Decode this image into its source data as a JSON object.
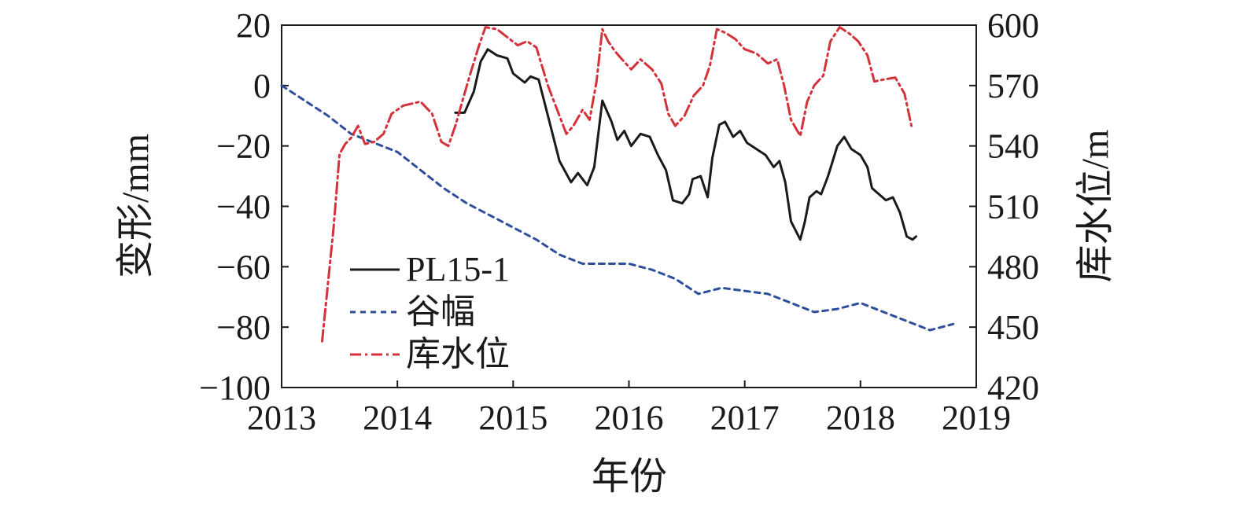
{
  "chart_data": {
    "type": "line",
    "xlabel": "年份",
    "ylabel_left": "变形/mm",
    "ylabel_right": "库水位/m",
    "xlim": [
      2013,
      2019
    ],
    "ylim_left": [
      -100,
      20
    ],
    "ylim_right": [
      420,
      600
    ],
    "x_ticks": [
      {
        "value": 2013,
        "label": "2013"
      },
      {
        "value": 2014,
        "label": "2014"
      },
      {
        "value": 2015,
        "label": "2015"
      },
      {
        "value": 2016,
        "label": "2016"
      },
      {
        "value": 2017,
        "label": "2017"
      },
      {
        "value": 2018,
        "label": "2018"
      },
      {
        "value": 2019,
        "label": "2019"
      }
    ],
    "y_ticks_left": [
      {
        "value": 20,
        "label": "20"
      },
      {
        "value": 0,
        "label": "0"
      },
      {
        "value": -20,
        "label": "−20"
      },
      {
        "value": -40,
        "label": "−40"
      },
      {
        "value": -60,
        "label": "−60"
      },
      {
        "value": -80,
        "label": "−80"
      },
      {
        "value": -100,
        "label": "−100"
      }
    ],
    "y_ticks_right": [
      {
        "value": 600,
        "label": "600"
      },
      {
        "value": 570,
        "label": "570"
      },
      {
        "value": 540,
        "label": "540"
      },
      {
        "value": 510,
        "label": "510"
      },
      {
        "value": 480,
        "label": "480"
      },
      {
        "value": 450,
        "label": "450"
      },
      {
        "value": 420,
        "label": "420"
      }
    ],
    "grid": false,
    "legend": {
      "placement": "lower-left"
    },
    "series": [
      {
        "name": "PL15-1",
        "axis": "left",
        "color": "#1a1a1a",
        "style": "solid",
        "points": [
          [
            2014.5,
            -9
          ],
          [
            2014.58,
            -9
          ],
          [
            2014.66,
            -2
          ],
          [
            2014.72,
            8
          ],
          [
            2014.78,
            12
          ],
          [
            2014.86,
            10
          ],
          [
            2014.95,
            9
          ],
          [
            2015.0,
            4
          ],
          [
            2015.1,
            1
          ],
          [
            2015.15,
            3
          ],
          [
            2015.22,
            2
          ],
          [
            2015.3,
            -10
          ],
          [
            2015.4,
            -25
          ],
          [
            2015.5,
            -32
          ],
          [
            2015.56,
            -29
          ],
          [
            2015.64,
            -33
          ],
          [
            2015.7,
            -27
          ],
          [
            2015.77,
            -5
          ],
          [
            2015.85,
            -12
          ],
          [
            2015.9,
            -18
          ],
          [
            2015.96,
            -15
          ],
          [
            2016.02,
            -20
          ],
          [
            2016.1,
            -16
          ],
          [
            2016.18,
            -17
          ],
          [
            2016.25,
            -23
          ],
          [
            2016.32,
            -28
          ],
          [
            2016.38,
            -38
          ],
          [
            2016.46,
            -39
          ],
          [
            2016.52,
            -36
          ],
          [
            2016.55,
            -31
          ],
          [
            2016.62,
            -30
          ],
          [
            2016.68,
            -37
          ],
          [
            2016.72,
            -24
          ],
          [
            2016.78,
            -13
          ],
          [
            2016.83,
            -12
          ],
          [
            2016.9,
            -17
          ],
          [
            2016.96,
            -15
          ],
          [
            2017.02,
            -19
          ],
          [
            2017.1,
            -21
          ],
          [
            2017.18,
            -23
          ],
          [
            2017.25,
            -27
          ],
          [
            2017.3,
            -25
          ],
          [
            2017.35,
            -32
          ],
          [
            2017.4,
            -45
          ],
          [
            2017.48,
            -51
          ],
          [
            2017.52,
            -45
          ],
          [
            2017.56,
            -37
          ],
          [
            2017.62,
            -35
          ],
          [
            2017.66,
            -36
          ],
          [
            2017.72,
            -30
          ],
          [
            2017.8,
            -20
          ],
          [
            2017.86,
            -17
          ],
          [
            2017.92,
            -21
          ],
          [
            2018.0,
            -23
          ],
          [
            2018.06,
            -27
          ],
          [
            2018.1,
            -34
          ],
          [
            2018.16,
            -36
          ],
          [
            2018.22,
            -38
          ],
          [
            2018.28,
            -37
          ],
          [
            2018.34,
            -42
          ],
          [
            2018.4,
            -50
          ],
          [
            2018.45,
            -51
          ],
          [
            2018.48,
            -50
          ]
        ]
      },
      {
        "name": "谷幅",
        "axis": "left",
        "color": "#2e4e9c",
        "style": "dashed",
        "points": [
          [
            2013.0,
            0
          ],
          [
            2013.2,
            -5
          ],
          [
            2013.4,
            -10
          ],
          [
            2013.6,
            -16
          ],
          [
            2013.8,
            -19
          ],
          [
            2014.0,
            -22
          ],
          [
            2014.2,
            -28
          ],
          [
            2014.4,
            -34
          ],
          [
            2014.6,
            -39
          ],
          [
            2014.8,
            -43
          ],
          [
            2015.0,
            -47
          ],
          [
            2015.2,
            -51
          ],
          [
            2015.4,
            -56
          ],
          [
            2015.6,
            -59
          ],
          [
            2015.8,
            -59
          ],
          [
            2016.0,
            -59
          ],
          [
            2016.2,
            -61
          ],
          [
            2016.4,
            -64
          ],
          [
            2016.6,
            -69
          ],
          [
            2016.8,
            -67
          ],
          [
            2017.0,
            -68
          ],
          [
            2017.2,
            -69
          ],
          [
            2017.4,
            -72
          ],
          [
            2017.6,
            -75
          ],
          [
            2017.8,
            -74
          ],
          [
            2018.0,
            -72
          ],
          [
            2018.2,
            -75
          ],
          [
            2018.4,
            -78
          ],
          [
            2018.6,
            -81
          ],
          [
            2018.8,
            -79
          ]
        ]
      },
      {
        "name": "库水位",
        "axis": "right",
        "color": "#d4323a",
        "style": "dashdot",
        "points": [
          [
            2013.35,
            443
          ],
          [
            2013.45,
            500
          ],
          [
            2013.5,
            536
          ],
          [
            2013.55,
            541
          ],
          [
            2013.6,
            544
          ],
          [
            2013.66,
            550
          ],
          [
            2013.72,
            541
          ],
          [
            2013.8,
            542
          ],
          [
            2013.88,
            546
          ],
          [
            2013.95,
            556
          ],
          [
            2014.05,
            560
          ],
          [
            2014.2,
            562
          ],
          [
            2014.3,
            556
          ],
          [
            2014.38,
            542
          ],
          [
            2014.44,
            540
          ],
          [
            2014.5,
            550
          ],
          [
            2014.56,
            562
          ],
          [
            2014.62,
            574
          ],
          [
            2014.7,
            589
          ],
          [
            2014.76,
            599
          ],
          [
            2014.86,
            598
          ],
          [
            2014.95,
            594
          ],
          [
            2015.04,
            590
          ],
          [
            2015.12,
            592
          ],
          [
            2015.2,
            589
          ],
          [
            2015.3,
            570
          ],
          [
            2015.4,
            555
          ],
          [
            2015.46,
            546
          ],
          [
            2015.52,
            550
          ],
          [
            2015.6,
            558
          ],
          [
            2015.66,
            553
          ],
          [
            2015.72,
            572
          ],
          [
            2015.77,
            598
          ],
          [
            2015.82,
            592
          ],
          [
            2015.88,
            587
          ],
          [
            2015.94,
            583
          ],
          [
            2016.02,
            578
          ],
          [
            2016.1,
            583
          ],
          [
            2016.2,
            578
          ],
          [
            2016.28,
            571
          ],
          [
            2016.34,
            556
          ],
          [
            2016.4,
            550
          ],
          [
            2016.48,
            555
          ],
          [
            2016.56,
            565
          ],
          [
            2016.64,
            570
          ],
          [
            2016.7,
            580
          ],
          [
            2016.76,
            598
          ],
          [
            2016.84,
            596
          ],
          [
            2016.92,
            593
          ],
          [
            2017.0,
            588
          ],
          [
            2017.1,
            586
          ],
          [
            2017.2,
            581
          ],
          [
            2017.28,
            583
          ],
          [
            2017.34,
            570
          ],
          [
            2017.4,
            553
          ],
          [
            2017.48,
            545
          ],
          [
            2017.54,
            562
          ],
          [
            2017.6,
            570
          ],
          [
            2017.68,
            575
          ],
          [
            2017.74,
            592
          ],
          [
            2017.82,
            599
          ],
          [
            2017.9,
            596
          ],
          [
            2017.98,
            592
          ],
          [
            2018.06,
            585
          ],
          [
            2018.12,
            572
          ],
          [
            2018.2,
            573
          ],
          [
            2018.3,
            574
          ],
          [
            2018.38,
            566
          ],
          [
            2018.44,
            550
          ]
        ]
      }
    ]
  }
}
